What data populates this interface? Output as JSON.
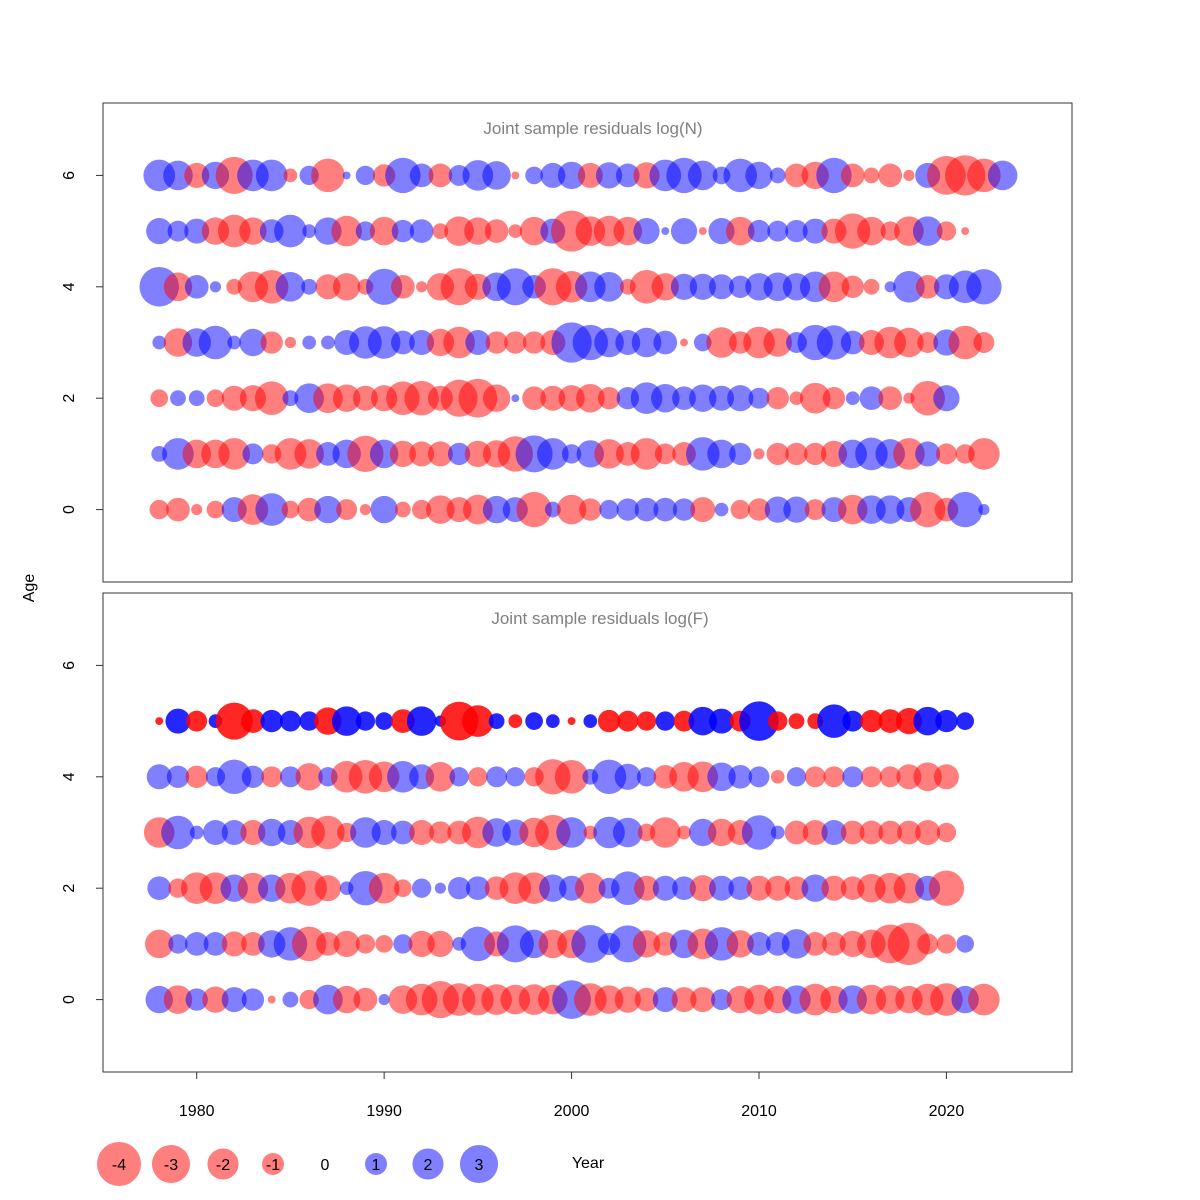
{
  "chart_data": {
    "type": "scatter",
    "xlabel": "Year",
    "ylabel": "Age",
    "xlim": [
      1975,
      2026.7
    ],
    "x_ticks": [
      "1980",
      "1990",
      "2000",
      "2010",
      "2020"
    ],
    "y_ticks": [
      "0",
      "2",
      "4",
      "6"
    ],
    "years": [
      1978,
      1979,
      1980,
      1981,
      1982,
      1983,
      1984,
      1985,
      1986,
      1987,
      1988,
      1989,
      1990,
      1991,
      1992,
      1993,
      1994,
      1995,
      1996,
      1997,
      1998,
      1999,
      2000,
      2001,
      2002,
      2003,
      2004,
      2005,
      2006,
      2007,
      2008,
      2009,
      2010,
      2011,
      2012,
      2013,
      2014,
      2015,
      2016,
      2017,
      2018,
      2019,
      2020,
      2021,
      2022,
      2023,
      2024
    ],
    "colors": {
      "positive": "#0000ff",
      "negative": "#ff0000"
    },
    "legend": {
      "values": [
        -4,
        -3,
        -2,
        -1,
        0,
        1,
        2,
        3
      ],
      "labels": [
        "-4",
        "-3",
        "-2",
        "-1",
        "0",
        "1",
        "2",
        "3"
      ],
      "placement": "bottom-left"
    },
    "panels": [
      {
        "title": "Joint sample residuals log(N)",
        "ylim": [
          -1.3,
          7.3
        ],
        "opacity": 0.5,
        "rows": [
          {
            "age": 6,
            "residuals": [
              1.6,
              1.4,
              -1.0,
              1.2,
              -2.2,
              1.6,
              1.6,
              -0.3,
              0.6,
              -1.8,
              0.1,
              0.6,
              -0.8,
              2.0,
              0.9,
              -0.9,
              0.7,
              1.5,
              1.3,
              -0.1,
              0.5,
              1.0,
              1.2,
              -1.0,
              1.1,
              0.9,
              -1.1,
              1.6,
              2.0,
              1.4,
              0.5,
              1.8,
              1.2,
              0.4,
              -0.9,
              -1.2,
              2.0,
              -0.9,
              -0.4,
              -0.9,
              -0.2,
              1.0,
              -2.4,
              -2.6,
              -1.8,
              1.4,
              0.0
            ]
          },
          {
            "age": 5,
            "residuals": [
              1.1,
              0.7,
              1.0,
              -1.2,
              -1.7,
              -1.2,
              0.9,
              1.7,
              0.3,
              1.2,
              -1.5,
              0.6,
              -1.3,
              0.8,
              0.9,
              -0.4,
              -1.4,
              -1.2,
              -0.9,
              -0.3,
              -1.3,
              1.0,
              -2.7,
              -1.4,
              -1.5,
              -1.3,
              1.1,
              0.1,
              1.1,
              -0.1,
              1.1,
              -1.3,
              0.8,
              0.7,
              0.8,
              1.0,
              -1.0,
              -2.0,
              -1.3,
              -0.6,
              -1.4,
              1.4,
              -0.6,
              -0.1,
              0.0,
              0.0,
              0.0
            ]
          },
          {
            "age": 4,
            "residuals": [
              2.5,
              -1.3,
              0.9,
              0.2,
              -0.4,
              -1.5,
              -1.8,
              1.4,
              0.4,
              -1.0,
              -1.2,
              -0.4,
              2.1,
              -0.9,
              -0.2,
              -1.2,
              -2.2,
              -1.1,
              1.3,
              2.2,
              0.9,
              -2.2,
              -1.6,
              1.5,
              1.4,
              -0.4,
              -1.8,
              -1.2,
              1.1,
              1.1,
              1.0,
              0.8,
              1.2,
              1.3,
              1.2,
              1.5,
              -1.5,
              -0.8,
              -0.4,
              0.2,
              1.6,
              -0.9,
              1.0,
              1.7,
              2.0,
              0.0,
              0.0
            ]
          },
          {
            "age": 3,
            "residuals": [
              0.3,
              -1.3,
              1.3,
              1.8,
              0.3,
              1.2,
              -0.8,
              -0.2,
              0.3,
              0.3,
              1.0,
              1.7,
              1.7,
              0.9,
              1.0,
              -1.2,
              -1.6,
              1.0,
              -0.8,
              -0.8,
              -0.8,
              -1.0,
              2.6,
              2.0,
              1.4,
              1.0,
              1.4,
              0.9,
              -0.1,
              0.5,
              -1.5,
              -0.8,
              -1.6,
              -1.3,
              0.7,
              2.0,
              1.9,
              0.9,
              -1.0,
              -1.6,
              -1.4,
              -0.7,
              1.1,
              -1.8,
              -0.7,
              0.0,
              0.0
            ]
          },
          {
            "age": 2,
            "residuals": [
              -0.5,
              0.4,
              0.4,
              -0.5,
              -1.0,
              -1.1,
              -1.8,
              0.4,
              1.4,
              -1.4,
              -1.2,
              -1.0,
              -1.1,
              -1.8,
              -1.9,
              -1.0,
              -2.2,
              -2.4,
              -1.2,
              0.1,
              -0.9,
              -1.0,
              -1.1,
              -1.3,
              -0.8,
              0.8,
              1.6,
              1.3,
              0.9,
              1.2,
              1.0,
              1.1,
              0.7,
              -0.8,
              -0.3,
              -1.5,
              -0.8,
              0.3,
              0.9,
              -0.9,
              -0.2,
              -1.9,
              1.1,
              0.0,
              0.0,
              0.0,
              0.0
            ]
          },
          {
            "age": 1,
            "residuals": [
              0.4,
              1.6,
              -1.3,
              -1.3,
              -1.6,
              0.7,
              -0.6,
              -1.6,
              -1.4,
              0.9,
              1.3,
              -2.1,
              1.3,
              -1.1,
              -1.0,
              -1.0,
              0.8,
              -1.1,
              -1.2,
              -2.0,
              2.2,
              1.6,
              0.6,
              1.2,
              -1.4,
              -0.9,
              -1.6,
              -0.7,
              -0.9,
              1.8,
              1.3,
              0.8,
              -0.2,
              -0.8,
              -0.8,
              -0.8,
              -1.1,
              1.3,
              1.7,
              1.4,
              -1.6,
              1.0,
              -0.7,
              -0.6,
              -1.6,
              0.0,
              0.0
            ]
          },
          {
            "age": 0,
            "residuals": [
              -0.6,
              -0.9,
              -0.2,
              -0.5,
              1.0,
              -1.5,
              1.7,
              -0.5,
              -0.9,
              1.2,
              -0.7,
              -0.2,
              1.2,
              -0.4,
              -0.6,
              -1.3,
              -1.0,
              -1.4,
              1.2,
              1.0,
              -2.0,
              0.4,
              -1.4,
              -0.8,
              0.6,
              0.8,
              0.9,
              0.9,
              0.8,
              -1.0,
              0.3,
              -0.6,
              -0.8,
              1.1,
              1.1,
              -0.7,
              1.0,
              -1.4,
              1.3,
              1.3,
              1.0,
              -2.0,
              -0.9,
              2.0,
              0.2,
              0.0,
              0.0
            ]
          }
        ]
      },
      {
        "title": "Joint sample residuals log(F)",
        "ylim": [
          -1.3,
          7.3
        ],
        "opacity": 0.5,
        "rows": [
          {
            "age": 5,
            "residuals": [
              -0.1,
              1.0,
              -0.7,
              0.3,
              -2.2,
              -0.9,
              0.8,
              0.7,
              0.6,
              -1.2,
              1.4,
              0.6,
              0.5,
              -0.9,
              1.4,
              0.2,
              -2.4,
              -1.6,
              0.4,
              -0.3,
              0.5,
              0.3,
              -0.1,
              0.3,
              -0.8,
              -0.7,
              -0.6,
              0.6,
              -0.7,
              1.3,
              1.0,
              -0.7,
              2.5,
              -0.6,
              -0.4,
              -0.4,
              1.8,
              0.7,
              -0.8,
              -0.9,
              -1.1,
              1.3,
              0.8,
              0.5,
              0.0,
              0.0,
              0.0
            ],
            "opacity": 0.85
          },
          {
            "age": 4,
            "residuals": [
              1.0,
              0.8,
              -0.8,
              0.6,
              1.9,
              0.8,
              -0.7,
              0.7,
              -1.2,
              0.6,
              -1.6,
              -1.8,
              -1.5,
              1.6,
              1.0,
              -1.4,
              0.6,
              -0.6,
              0.7,
              0.6,
              -0.6,
              -2.0,
              -1.8,
              0.4,
              1.9,
              1.1,
              0.6,
              -0.9,
              -1.4,
              -1.5,
              1.3,
              0.9,
              0.7,
              -0.3,
              0.6,
              -0.7,
              -0.7,
              0.7,
              -0.7,
              -0.7,
              -1.0,
              -1.3,
              -1.0,
              0.0,
              0.0,
              0.0,
              0.0
            ]
          },
          {
            "age": 3,
            "residuals": [
              -1.5,
              1.8,
              0.3,
              1.0,
              1.0,
              -1.0,
              1.2,
              1.0,
              -1.6,
              -1.8,
              -0.6,
              1.5,
              1.0,
              0.9,
              -1.0,
              -0.8,
              -0.9,
              -1.6,
              1.3,
              1.1,
              -1.4,
              -2.0,
              1.5,
              -0.3,
              1.6,
              1.4,
              -0.5,
              -1.5,
              -0.3,
              1.2,
              -1.2,
              -1.0,
              1.9,
              0.3,
              -0.9,
              -1.0,
              1.0,
              -0.9,
              -0.9,
              -0.9,
              -0.9,
              -1.0,
              -0.6,
              0.0,
              0.0,
              0.0,
              0.0
            ]
          },
          {
            "age": 2,
            "residuals": [
              0.9,
              -0.6,
              -1.6,
              -1.6,
              1.2,
              -1.5,
              1.2,
              -1.5,
              -2.0,
              -1.1,
              0.3,
              1.9,
              -1.5,
              -0.5,
              0.6,
              0.2,
              0.8,
              0.9,
              -0.9,
              -1.6,
              -1.6,
              1.2,
              1.0,
              -1.5,
              0.7,
              1.8,
              -1.0,
              1.0,
              0.9,
              -1.1,
              1.0,
              0.9,
              -1.0,
              -1.0,
              -0.9,
              1.2,
              -1.0,
              -0.9,
              -1.3,
              -1.5,
              -1.5,
              1.0,
              -2.0,
              0.0,
              0.0,
              0.0,
              0.0
            ]
          },
          {
            "age": 1,
            "residuals": [
              -1.3,
              0.6,
              0.9,
              0.9,
              -1.0,
              -0.9,
              1.2,
              1.8,
              -1.9,
              -0.9,
              -1.1,
              -0.6,
              -0.5,
              0.6,
              -1.1,
              -1.1,
              0.3,
              1.9,
              -1.0,
              2.2,
              1.3,
              -1.3,
              -1.3,
              2.3,
              0.8,
              2.2,
              -1.2,
              -0.9,
              1.3,
              -1.5,
              1.8,
              -1.2,
              0.9,
              0.9,
              1.4,
              -0.9,
              -0.9,
              -1.1,
              -1.3,
              -2.4,
              -2.9,
              -0.7,
              -0.6,
              0.5,
              0.0,
              0.0,
              0.0
            ]
          },
          {
            "age": 0,
            "residuals": [
              1.2,
              -1.3,
              0.8,
              -1.1,
              1.0,
              0.8,
              -0.1,
              0.4,
              -0.6,
              1.4,
              -1.2,
              -0.9,
              0.2,
              -1.3,
              -1.6,
              -2.2,
              -1.7,
              -1.6,
              -1.5,
              -1.4,
              -1.5,
              -1.4,
              2.4,
              -1.7,
              -1.3,
              -1.1,
              -0.9,
              1.0,
              -1.0,
              -1.0,
              0.7,
              -1.2,
              -1.4,
              -1.2,
              1.3,
              -1.6,
              -1.2,
              1.3,
              -1.4,
              -1.3,
              -1.2,
              -1.6,
              -1.7,
              1.2,
              -1.6,
              0.0,
              0.0
            ]
          }
        ]
      }
    ]
  }
}
